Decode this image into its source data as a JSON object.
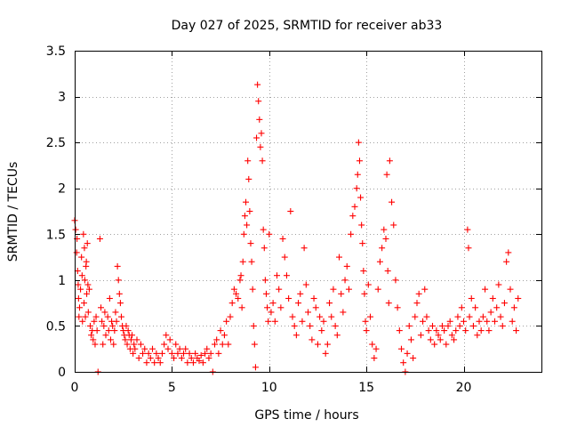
{
  "chart_data": {
    "type": "scatter",
    "title": "Day 027 of 2025, SRMTID for receiver ab33",
    "xlabel": "GPS time / hours",
    "ylabel": "SRMTID / TECUs",
    "xlim": [
      0,
      24
    ],
    "ylim": [
      0,
      3.5
    ],
    "x_ticks": [
      "0",
      "5",
      "10",
      "15",
      "20"
    ],
    "y_ticks": [
      "0",
      "0.5",
      "1",
      "1.5",
      "2",
      "2.5",
      "3",
      "3.5"
    ],
    "x_tick_values": [
      0,
      5,
      10,
      15,
      20
    ],
    "y_tick_values": [
      0,
      0.5,
      1,
      1.5,
      2,
      2.5,
      3,
      3.5
    ],
    "grid": true,
    "marker": "+",
    "color": "#ff0000",
    "series": [
      {
        "name": "SRMTID",
        "points": [
          [
            0.0,
            1.65
          ],
          [
            0.05,
            1.55
          ],
          [
            0.1,
            1.3
          ],
          [
            0.12,
            1.45
          ],
          [
            0.15,
            1.1
          ],
          [
            0.18,
            0.95
          ],
          [
            0.2,
            0.8
          ],
          [
            0.22,
            0.6
          ],
          [
            0.25,
            0.7
          ],
          [
            0.3,
            0.9
          ],
          [
            0.35,
            1.25
          ],
          [
            0.38,
            1.05
          ],
          [
            0.4,
            0.55
          ],
          [
            0.45,
            1.5
          ],
          [
            0.48,
            0.75
          ],
          [
            0.5,
            1.35
          ],
          [
            0.52,
            1.0
          ],
          [
            0.55,
            0.6
          ],
          [
            0.58,
            1.15
          ],
          [
            0.6,
            1.2
          ],
          [
            0.62,
            0.85
          ],
          [
            0.65,
            1.4
          ],
          [
            0.68,
            0.95
          ],
          [
            0.7,
            0.65
          ],
          [
            0.75,
            0.9
          ],
          [
            0.8,
            0.5
          ],
          [
            0.85,
            0.4
          ],
          [
            0.9,
            0.45
          ],
          [
            0.95,
            0.35
          ],
          [
            1.0,
            0.55
          ],
          [
            1.05,
            0.3
          ],
          [
            1.1,
            0.6
          ],
          [
            1.15,
            0.45
          ],
          [
            1.2,
            0.0
          ],
          [
            1.3,
            1.45
          ],
          [
            1.35,
            0.7
          ],
          [
            1.4,
            0.55
          ],
          [
            1.45,
            0.3
          ],
          [
            1.5,
            0.5
          ],
          [
            1.55,
            0.65
          ],
          [
            1.6,
            0.4
          ],
          [
            1.7,
            0.6
          ],
          [
            1.75,
            0.45
          ],
          [
            1.8,
            0.8
          ],
          [
            1.85,
            0.35
          ],
          [
            1.9,
            0.55
          ],
          [
            1.95,
            0.5
          ],
          [
            2.0,
            0.3
          ],
          [
            2.05,
            0.45
          ],
          [
            2.1,
            0.65
          ],
          [
            2.15,
            0.55
          ],
          [
            2.2,
            1.15
          ],
          [
            2.25,
            1.0
          ],
          [
            2.3,
            0.85
          ],
          [
            2.35,
            0.75
          ],
          [
            2.4,
            0.6
          ],
          [
            2.45,
            0.5
          ],
          [
            2.5,
            0.45
          ],
          [
            2.55,
            0.4
          ],
          [
            2.6,
            0.35
          ],
          [
            2.65,
            0.5
          ],
          [
            2.7,
            0.3
          ],
          [
            2.75,
            0.45
          ],
          [
            2.8,
            0.4
          ],
          [
            2.85,
            0.25
          ],
          [
            2.9,
            0.35
          ],
          [
            2.95,
            0.4
          ],
          [
            3.0,
            0.2
          ],
          [
            3.05,
            0.3
          ],
          [
            3.1,
            0.25
          ],
          [
            3.2,
            0.35
          ],
          [
            3.3,
            0.15
          ],
          [
            3.4,
            0.3
          ],
          [
            3.5,
            0.2
          ],
          [
            3.6,
            0.25
          ],
          [
            3.7,
            0.1
          ],
          [
            3.8,
            0.2
          ],
          [
            3.9,
            0.15
          ],
          [
            4.0,
            0.25
          ],
          [
            4.1,
            0.1
          ],
          [
            4.2,
            0.2
          ],
          [
            4.3,
            0.15
          ],
          [
            4.4,
            0.1
          ],
          [
            4.5,
            0.2
          ],
          [
            4.6,
            0.3
          ],
          [
            4.7,
            0.4
          ],
          [
            4.8,
            0.25
          ],
          [
            4.9,
            0.35
          ],
          [
            5.0,
            0.2
          ],
          [
            5.1,
            0.15
          ],
          [
            5.2,
            0.3
          ],
          [
            5.3,
            0.2
          ],
          [
            5.4,
            0.25
          ],
          [
            5.5,
            0.15
          ],
          [
            5.6,
            0.2
          ],
          [
            5.7,
            0.25
          ],
          [
            5.8,
            0.1
          ],
          [
            5.9,
            0.2
          ],
          [
            6.0,
            0.15
          ],
          [
            6.1,
            0.1
          ],
          [
            6.2,
            0.2
          ],
          [
            6.3,
            0.15
          ],
          [
            6.4,
            0.12
          ],
          [
            6.5,
            0.18
          ],
          [
            6.6,
            0.1
          ],
          [
            6.7,
            0.2
          ],
          [
            6.8,
            0.25
          ],
          [
            6.9,
            0.15
          ],
          [
            7.0,
            0.2
          ],
          [
            7.1,
            0.0
          ],
          [
            7.2,
            0.3
          ],
          [
            7.3,
            0.35
          ],
          [
            7.4,
            0.2
          ],
          [
            7.5,
            0.45
          ],
          [
            7.6,
            0.3
          ],
          [
            7.7,
            0.4
          ],
          [
            7.8,
            0.55
          ],
          [
            7.9,
            0.3
          ],
          [
            8.0,
            0.6
          ],
          [
            8.1,
            0.75
          ],
          [
            8.2,
            0.9
          ],
          [
            8.3,
            0.85
          ],
          [
            8.4,
            0.8
          ],
          [
            8.5,
            1.0
          ],
          [
            8.55,
            1.05
          ],
          [
            8.6,
            0.7
          ],
          [
            8.65,
            1.2
          ],
          [
            8.7,
            1.5
          ],
          [
            8.75,
            1.7
          ],
          [
            8.8,
            1.85
          ],
          [
            8.85,
            1.6
          ],
          [
            8.9,
            2.3
          ],
          [
            8.95,
            2.1
          ],
          [
            9.0,
            1.75
          ],
          [
            9.05,
            1.4
          ],
          [
            9.1,
            1.2
          ],
          [
            9.15,
            0.9
          ],
          [
            9.2,
            0.5
          ],
          [
            9.25,
            0.3
          ],
          [
            9.3,
            0.05
          ],
          [
            9.35,
            2.55
          ],
          [
            9.4,
            3.13
          ],
          [
            9.45,
            2.95
          ],
          [
            9.5,
            2.75
          ],
          [
            9.55,
            2.45
          ],
          [
            9.6,
            2.6
          ],
          [
            9.65,
            2.3
          ],
          [
            9.7,
            1.55
          ],
          [
            9.75,
            1.35
          ],
          [
            9.8,
            1.0
          ],
          [
            9.85,
            0.85
          ],
          [
            9.9,
            0.7
          ],
          [
            9.95,
            0.55
          ],
          [
            10.0,
            1.5
          ],
          [
            10.1,
            0.65
          ],
          [
            10.2,
            0.75
          ],
          [
            10.3,
            0.55
          ],
          [
            10.4,
            1.05
          ],
          [
            10.5,
            0.9
          ],
          [
            10.6,
            0.7
          ],
          [
            10.7,
            1.45
          ],
          [
            10.8,
            1.25
          ],
          [
            10.9,
            1.05
          ],
          [
            11.0,
            0.8
          ],
          [
            11.1,
            1.75
          ],
          [
            11.2,
            0.6
          ],
          [
            11.3,
            0.5
          ],
          [
            11.4,
            0.4
          ],
          [
            11.5,
            0.75
          ],
          [
            11.6,
            0.85
          ],
          [
            11.7,
            0.55
          ],
          [
            11.8,
            1.35
          ],
          [
            11.9,
            0.95
          ],
          [
            12.0,
            0.65
          ],
          [
            12.1,
            0.5
          ],
          [
            12.2,
            0.35
          ],
          [
            12.3,
            0.8
          ],
          [
            12.4,
            0.7
          ],
          [
            12.5,
            0.3
          ],
          [
            12.6,
            0.6
          ],
          [
            12.7,
            0.45
          ],
          [
            12.8,
            0.55
          ],
          [
            12.9,
            0.2
          ],
          [
            13.0,
            0.3
          ],
          [
            13.1,
            0.75
          ],
          [
            13.2,
            0.6
          ],
          [
            13.3,
            0.9
          ],
          [
            13.4,
            0.5
          ],
          [
            13.5,
            0.4
          ],
          [
            13.6,
            1.25
          ],
          [
            13.7,
            0.85
          ],
          [
            13.8,
            0.65
          ],
          [
            13.9,
            1.0
          ],
          [
            14.0,
            1.15
          ],
          [
            14.1,
            0.9
          ],
          [
            14.2,
            1.5
          ],
          [
            14.3,
            1.7
          ],
          [
            14.4,
            1.8
          ],
          [
            14.5,
            2.0
          ],
          [
            14.55,
            2.15
          ],
          [
            14.6,
            2.5
          ],
          [
            14.65,
            2.3
          ],
          [
            14.7,
            1.9
          ],
          [
            14.75,
            1.6
          ],
          [
            14.8,
            1.4
          ],
          [
            14.85,
            1.1
          ],
          [
            14.9,
            0.85
          ],
          [
            14.95,
            0.55
          ],
          [
            15.0,
            0.45
          ],
          [
            15.1,
            0.95
          ],
          [
            15.2,
            0.6
          ],
          [
            15.3,
            0.3
          ],
          [
            15.4,
            0.15
          ],
          [
            15.5,
            0.25
          ],
          [
            15.6,
            0.9
          ],
          [
            15.7,
            1.2
          ],
          [
            15.8,
            1.35
          ],
          [
            15.9,
            1.55
          ],
          [
            16.0,
            1.45
          ],
          [
            16.05,
            2.15
          ],
          [
            16.1,
            1.1
          ],
          [
            16.15,
            0.75
          ],
          [
            16.2,
            2.3
          ],
          [
            16.3,
            1.85
          ],
          [
            16.4,
            1.6
          ],
          [
            16.5,
            1.0
          ],
          [
            16.6,
            0.7
          ],
          [
            16.7,
            0.45
          ],
          [
            16.8,
            0.25
          ],
          [
            16.9,
            0.1
          ],
          [
            17.0,
            0.0
          ],
          [
            17.1,
            0.2
          ],
          [
            17.2,
            0.5
          ],
          [
            17.3,
            0.35
          ],
          [
            17.4,
            0.15
          ],
          [
            17.5,
            0.6
          ],
          [
            17.6,
            0.75
          ],
          [
            17.7,
            0.85
          ],
          [
            17.8,
            0.4
          ],
          [
            17.9,
            0.55
          ],
          [
            18.0,
            0.9
          ],
          [
            18.1,
            0.6
          ],
          [
            18.2,
            0.45
          ],
          [
            18.3,
            0.35
          ],
          [
            18.4,
            0.5
          ],
          [
            18.5,
            0.3
          ],
          [
            18.6,
            0.45
          ],
          [
            18.7,
            0.4
          ],
          [
            18.8,
            0.35
          ],
          [
            18.9,
            0.5
          ],
          [
            19.0,
            0.45
          ],
          [
            19.1,
            0.3
          ],
          [
            19.2,
            0.5
          ],
          [
            19.3,
            0.55
          ],
          [
            19.4,
            0.4
          ],
          [
            19.5,
            0.35
          ],
          [
            19.6,
            0.45
          ],
          [
            19.7,
            0.6
          ],
          [
            19.8,
            0.5
          ],
          [
            19.9,
            0.7
          ],
          [
            20.0,
            0.55
          ],
          [
            20.1,
            0.45
          ],
          [
            20.2,
            1.55
          ],
          [
            20.25,
            1.35
          ],
          [
            20.3,
            0.6
          ],
          [
            20.4,
            0.8
          ],
          [
            20.5,
            0.5
          ],
          [
            20.6,
            0.7
          ],
          [
            20.7,
            0.4
          ],
          [
            20.8,
            0.55
          ],
          [
            20.9,
            0.45
          ],
          [
            21.0,
            0.6
          ],
          [
            21.1,
            0.9
          ],
          [
            21.2,
            0.55
          ],
          [
            21.3,
            0.45
          ],
          [
            21.4,
            0.65
          ],
          [
            21.5,
            0.8
          ],
          [
            21.6,
            0.55
          ],
          [
            21.7,
            0.7
          ],
          [
            21.8,
            0.95
          ],
          [
            21.9,
            0.6
          ],
          [
            22.0,
            0.5
          ],
          [
            22.1,
            0.75
          ],
          [
            22.2,
            1.2
          ],
          [
            22.3,
            1.3
          ],
          [
            22.4,
            0.9
          ],
          [
            22.5,
            0.55
          ],
          [
            22.6,
            0.7
          ],
          [
            22.7,
            0.45
          ],
          [
            22.8,
            0.8
          ]
        ]
      }
    ]
  }
}
